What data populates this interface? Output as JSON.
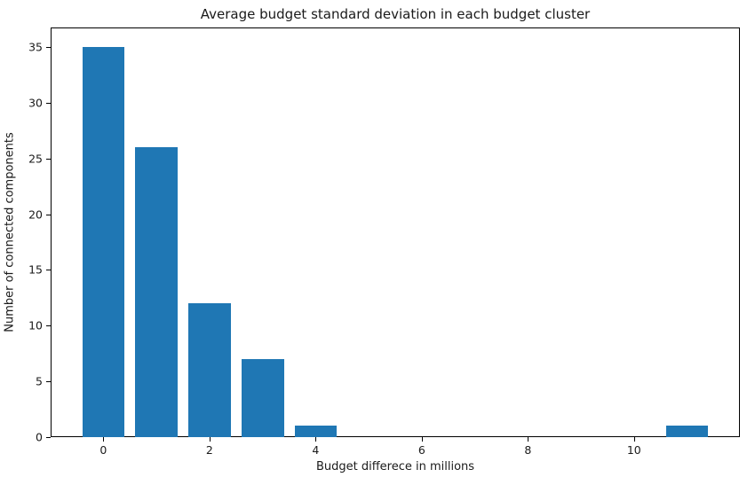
{
  "chart_data": {
    "type": "bar",
    "title": "Average budget standard deviation in each budget cluster",
    "xlabel": "Budget differece in millions",
    "ylabel": "Number of connected components",
    "x": [
      0,
      1,
      2,
      3,
      4,
      11
    ],
    "values": [
      35,
      26,
      12,
      7,
      1,
      1
    ],
    "bar_width": 0.8,
    "bar_color": "#1f77b4",
    "xlim": [
      -0.995,
      11.995
    ],
    "ylim": [
      0,
      36.75
    ],
    "xticks": [
      0,
      2,
      4,
      6,
      8,
      10
    ],
    "yticks": [
      0,
      5,
      10,
      15,
      20,
      25,
      30,
      35
    ],
    "grid": false,
    "legend": null,
    "background_color": "#ffffff",
    "spine_color": "#000000",
    "text_color": "#1a1a1a"
  }
}
